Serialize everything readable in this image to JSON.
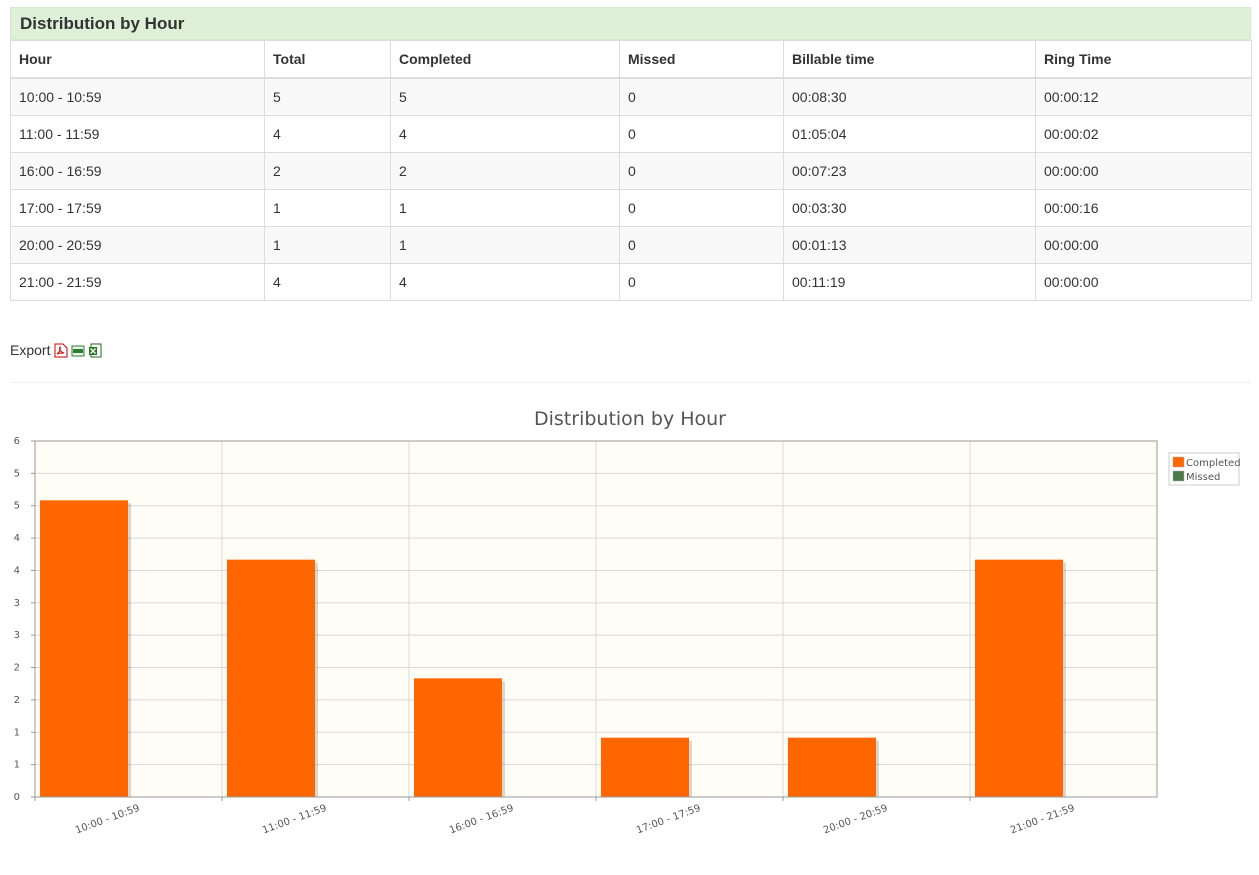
{
  "panel": {
    "title": "Distribution by Hour"
  },
  "table": {
    "headers": [
      "Hour",
      "Total",
      "Completed",
      "Missed",
      "Billable time",
      "Ring Time"
    ],
    "rows": [
      [
        "10:00 - 10:59",
        "5",
        "5",
        "0",
        "00:08:30",
        "00:00:12"
      ],
      [
        "11:00 - 11:59",
        "4",
        "4",
        "0",
        "01:05:04",
        "00:00:02"
      ],
      [
        "16:00 - 16:59",
        "2",
        "2",
        "0",
        "00:07:23",
        "00:00:00"
      ],
      [
        "17:00 - 17:59",
        "1",
        "1",
        "0",
        "00:03:30",
        "00:00:16"
      ],
      [
        "20:00 - 20:59",
        "1",
        "1",
        "0",
        "00:01:13",
        "00:00:00"
      ],
      [
        "21:00 - 21:59",
        "4",
        "4",
        "0",
        "00:11:19",
        "00:00:00"
      ]
    ]
  },
  "export": {
    "label": "Export",
    "icons": [
      "pdf-icon",
      "csv-icon",
      "excel-icon"
    ]
  },
  "chart_data": {
    "type": "bar",
    "title": "Distribution by Hour",
    "categories": [
      "10:00 - 10:59",
      "11:00 - 11:59",
      "16:00 - 16:59",
      "17:00 - 17:59",
      "20:00 - 20:59",
      "21:00 - 21:59"
    ],
    "series": [
      {
        "name": "Completed",
        "values": [
          5,
          4,
          2,
          1,
          1,
          4
        ],
        "color": "#ff6600"
      },
      {
        "name": "Missed",
        "values": [
          0,
          0,
          0,
          0,
          0,
          0
        ],
        "color": "#4b7b4b"
      }
    ],
    "ylim": [
      0,
      6
    ],
    "yticks": [
      "0",
      "1",
      "1",
      "2",
      "2",
      "3",
      "3",
      "4",
      "4",
      "5",
      "5",
      "6"
    ],
    "grid": true,
    "legend": "top-right",
    "plot_background": "#fffdf6"
  }
}
